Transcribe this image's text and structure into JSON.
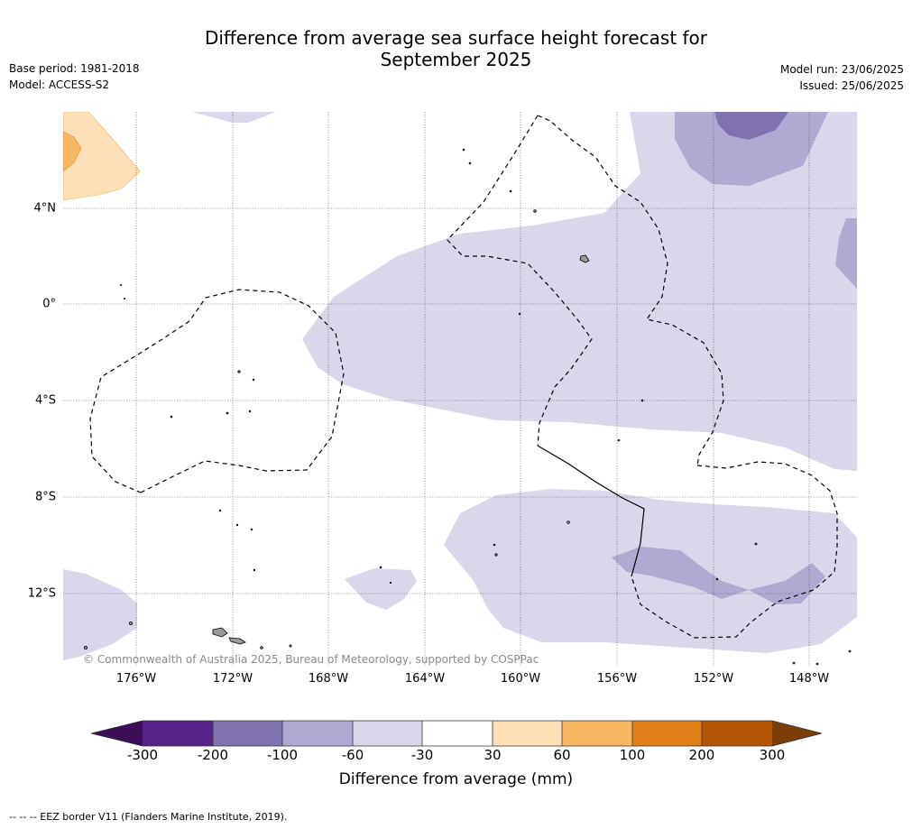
{
  "title_line1": "Difference from average sea surface height forecast for",
  "title_line2": "September 2025",
  "meta_left": [
    "Base period: 1981-2018",
    "Model: ACCESS-S2"
  ],
  "meta_right": [
    "Model run: 23/06/2025",
    "Issued: 25/06/2025"
  ],
  "lon_labels": [
    "176°W",
    "172°W",
    "168°W",
    "164°W",
    "160°W",
    "156°W",
    "152°W",
    "148°W"
  ],
  "lat_labels": [
    "4°N",
    "0°",
    "4°S",
    "8°S",
    "12°S"
  ],
  "credit": "© Commonwealth of Australia 2025, Bureau of Meteorology, supported by COSPPac",
  "colorbar": {
    "ticks": [
      "-300",
      "-200",
      "-100",
      "-60",
      "-30",
      "30",
      "60",
      "100",
      "200",
      "300"
    ],
    "label": "Difference from average (mm)",
    "colors": [
      "#3a0f57",
      "#56238a",
      "#8073ad",
      "#b0a9d0",
      "#d8d8ea",
      "#ffffff",
      "#fde0b7",
      "#f9b763",
      "#e07f17",
      "#b45505",
      "#7d3d06"
    ]
  },
  "footer": "-- -- -- EEZ border V11 (Flanders Marine Institute, 2019).",
  "colors": {
    "fill_weak_neg": "#d8d8ea",
    "fill_mid_neg": "#b0a9d0",
    "fill_strong_neg": "#8073ad",
    "fill_weak_pos": "#fde0b7",
    "fill_mid_pos": "#f9b763",
    "grid": "#555555",
    "land": "#9a9a9a"
  }
}
